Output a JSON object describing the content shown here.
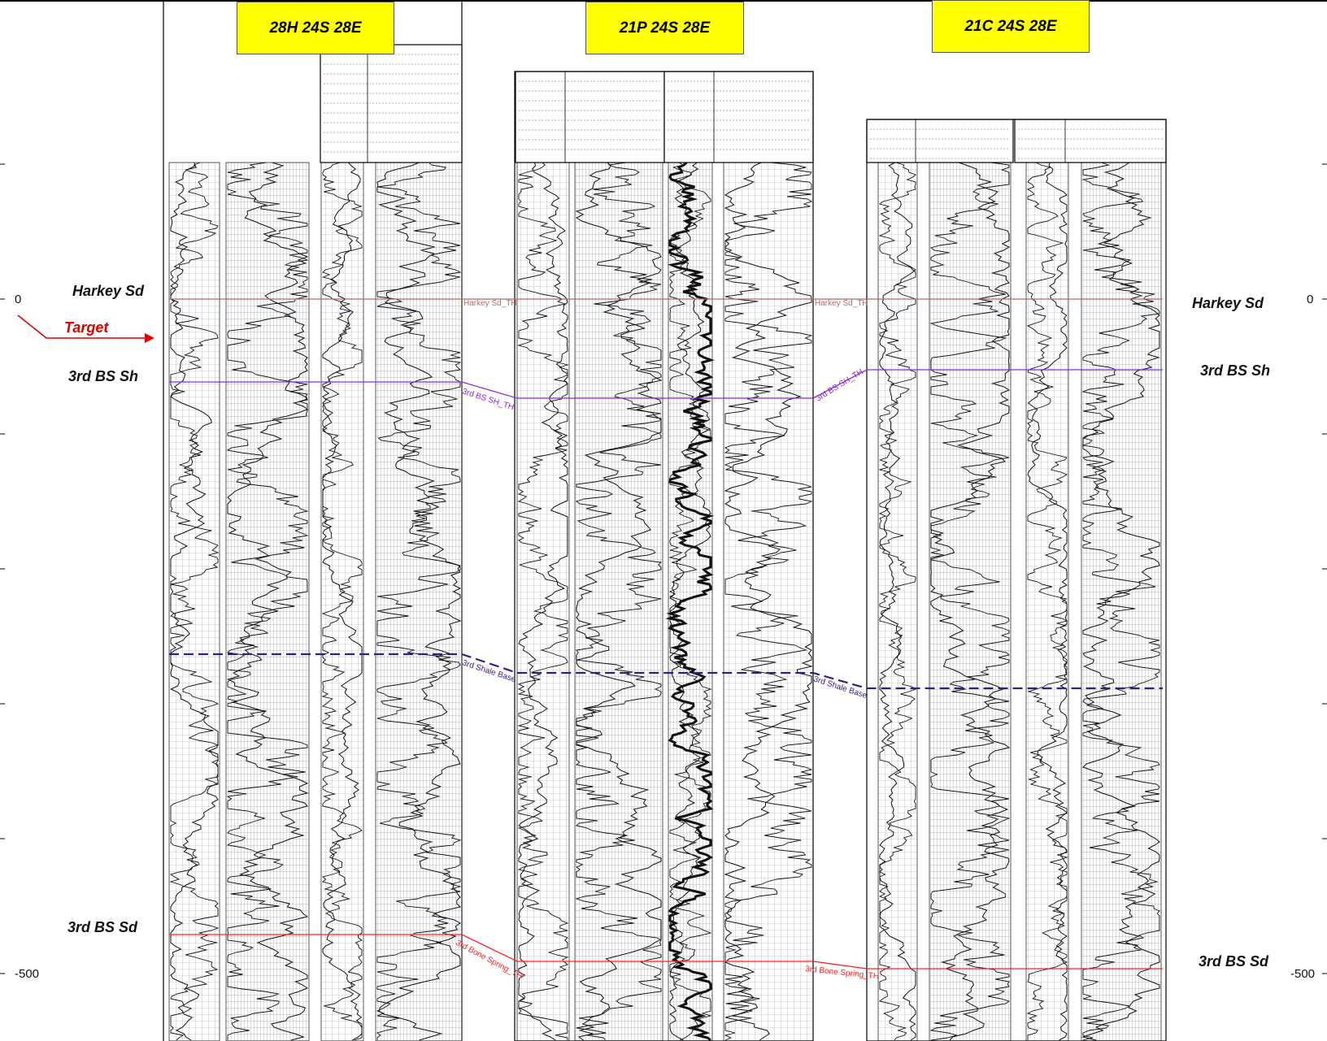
{
  "wells": [
    {
      "name": "28H 24S 28E"
    },
    {
      "name": "21P 24S 28E"
    },
    {
      "name": "21C 24S 28E"
    }
  ],
  "formations_left": [
    "Harkey Sd",
    "3rd BS Sh",
    "3rd BS Sd"
  ],
  "formations_right": [
    "Harkey Sd",
    "3rd BS Sh",
    "3rd BS Sd"
  ],
  "target": "Target",
  "depth_ticks": {
    "zero": "0",
    "minus500": "-500"
  },
  "tops": [
    {
      "id": "harkey",
      "label": "Harkey Sd_TH",
      "color": "#b06a6a",
      "dash": false
    },
    {
      "id": "bssh",
      "label": "3rd BS SH_TH",
      "color": "#8a2be2",
      "dash": false
    },
    {
      "id": "shbase",
      "label": "3rd Shale Base",
      "color": "#3a1a8a",
      "dash": true
    },
    {
      "id": "bssd",
      "label": "3rd Bone Spring_TH",
      "color": "#ff2020",
      "dash": false
    }
  ],
  "colors": {
    "yellow": "#ffff00",
    "target": "#e00000"
  }
}
